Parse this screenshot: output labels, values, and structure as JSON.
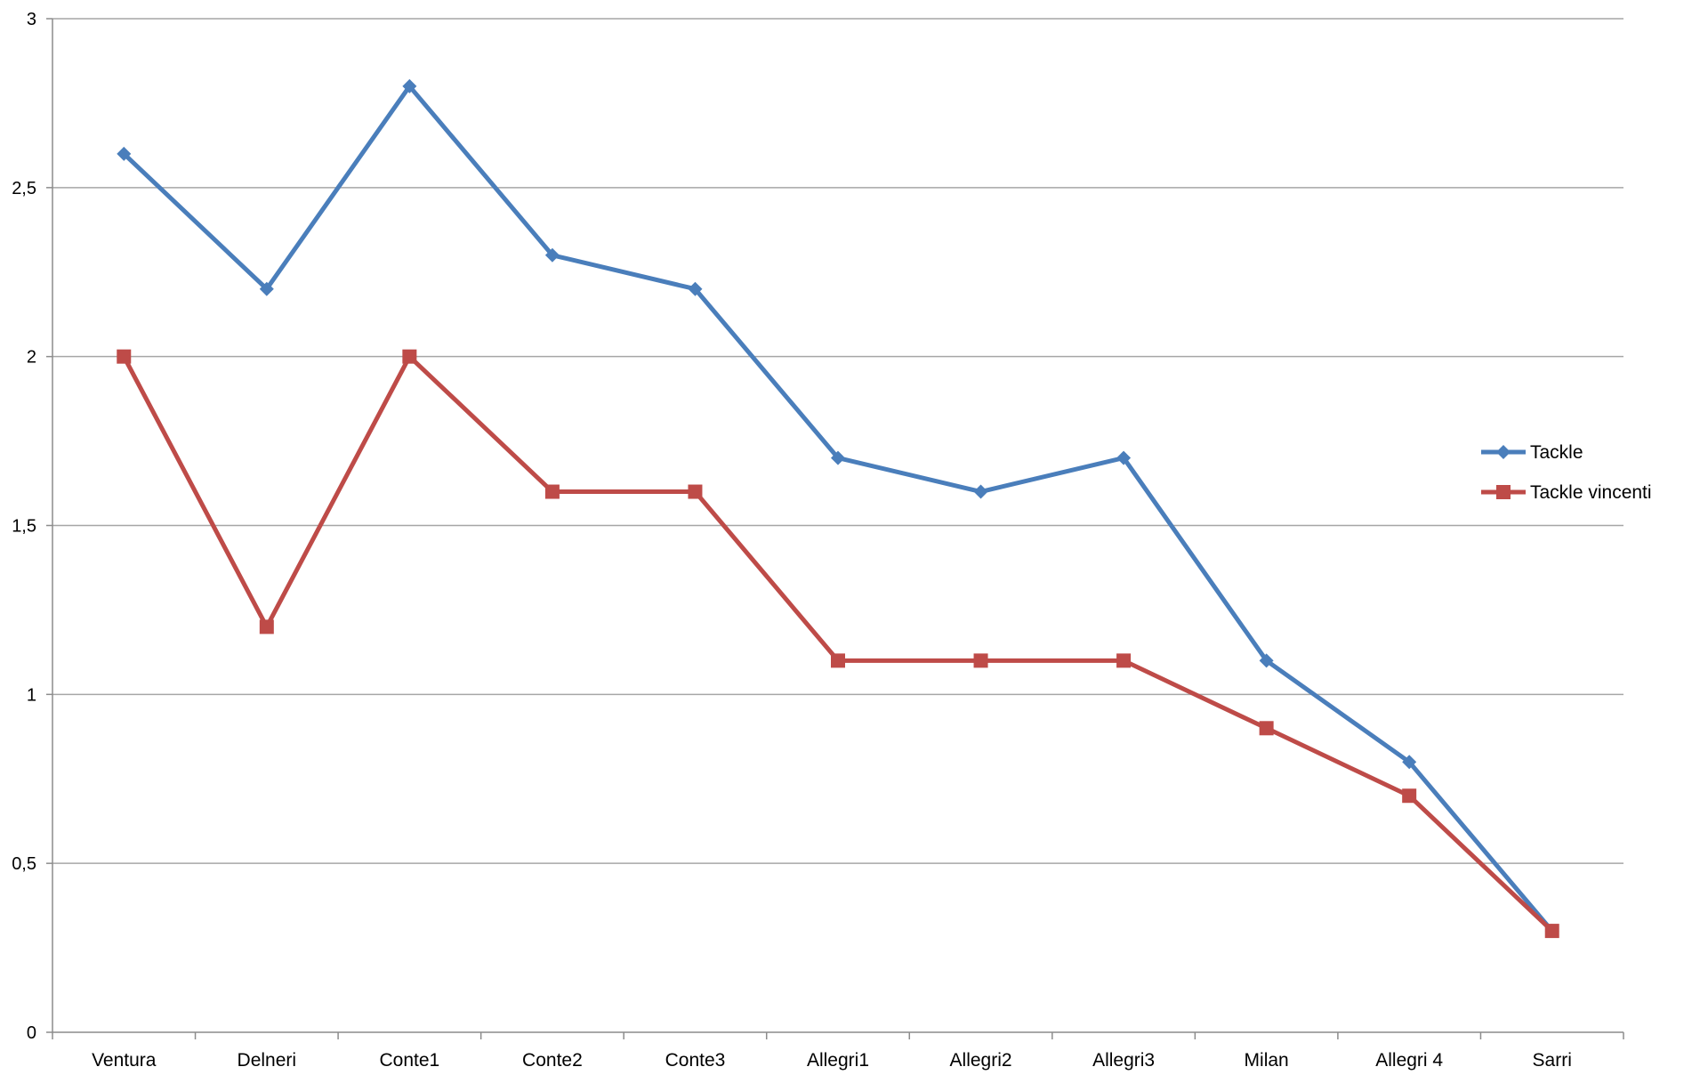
{
  "chart_data": {
    "type": "line",
    "title": "",
    "xlabel": "",
    "ylabel": "",
    "categories": [
      "Ventura",
      "Delneri",
      "Conte1",
      "Conte2",
      "Conte3",
      "Allegri1",
      "Allegri2",
      "Allegri3",
      "Milan",
      "Allegri 4",
      "Sarri"
    ],
    "ylim": [
      0,
      3
    ],
    "yticks": [
      0,
      0.5,
      1,
      1.5,
      2,
      2.5,
      3
    ],
    "ytick_labels": [
      "0",
      "0,5",
      "1",
      "1,5",
      "2",
      "2,5",
      "3"
    ],
    "grid": true,
    "legend_position": "right",
    "series": [
      {
        "name": "Tackle",
        "color": "#4a7ebb",
        "marker": "diamond",
        "values": [
          2.6,
          2.2,
          2.8,
          2.3,
          2.2,
          1.7,
          1.6,
          1.7,
          1.1,
          0.8,
          0.3
        ]
      },
      {
        "name": "Tackle vincenti",
        "color": "#be4b48",
        "marker": "square",
        "values": [
          2.0,
          1.2,
          2.0,
          1.6,
          1.6,
          1.1,
          1.1,
          1.1,
          0.9,
          0.7,
          0.3
        ]
      }
    ]
  }
}
